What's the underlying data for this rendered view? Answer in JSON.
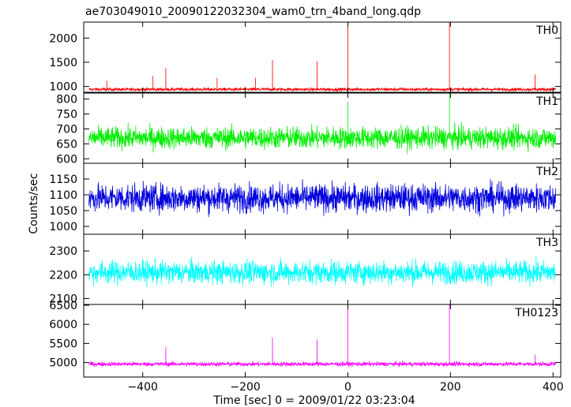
{
  "chart_data": {
    "type": "line",
    "title": "ae703049010_20090122032304_wam0_trn_4band_long.qdp",
    "xlabel": "Time [sec] 0 = 2009/01/22 03:23:04",
    "ylabel": "Counts/sec",
    "xlim": [
      -515,
      415
    ],
    "x_ticks": [
      -400,
      -200,
      0,
      200,
      400
    ],
    "x_tick_labels": [
      "−400",
      "−200",
      "0",
      "200",
      "400"
    ],
    "grid": false,
    "panels": [
      {
        "name": "TH0",
        "color": "#ff0000",
        "ylim": [
          880,
          2330
        ],
        "y_ticks": [
          1000,
          1500,
          2000
        ],
        "baseline": 940,
        "noise": 40,
        "spikes": [
          [
            -470,
            1120
          ],
          [
            -380,
            1220
          ],
          [
            -355,
            1380
          ],
          [
            -255,
            1180
          ],
          [
            -180,
            1180
          ],
          [
            -147,
            1550
          ],
          [
            -60,
            1520
          ],
          [
            0,
            2330
          ],
          [
            198,
            2330
          ],
          [
            365,
            1250
          ]
        ]
      },
      {
        "name": "TH1",
        "color": "#00ee00",
        "ylim": [
          585,
          820
        ],
        "y_ticks": [
          600,
          650,
          700,
          750,
          800
        ],
        "baseline": 670,
        "noise": 45,
        "spikes": [
          [
            0,
            790
          ],
          [
            198,
            820
          ]
        ]
      },
      {
        "name": "TH2",
        "color": "#0000dd",
        "ylim": [
          975,
          1200
        ],
        "y_ticks": [
          1000,
          1050,
          1100,
          1150
        ],
        "baseline": 1090,
        "noise": 55,
        "spikes": []
      },
      {
        "name": "TH3",
        "color": "#00ffff",
        "ylim": [
          2075,
          2370
        ],
        "y_ticks": [
          2100,
          2200,
          2300
        ],
        "baseline": 2210,
        "noise": 60,
        "spikes": []
      },
      {
        "name": "TH0123",
        "color": "#ff00ff",
        "ylim": [
          4620,
          6520
        ],
        "y_ticks": [
          5000,
          5500,
          6000,
          6500
        ],
        "baseline": 4960,
        "noise": 70,
        "spikes": [
          [
            -355,
            5400
          ],
          [
            -147,
            5650
          ],
          [
            -60,
            5600
          ],
          [
            0,
            6400
          ],
          [
            198,
            6520
          ],
          [
            365,
            5200
          ]
        ]
      }
    ]
  }
}
